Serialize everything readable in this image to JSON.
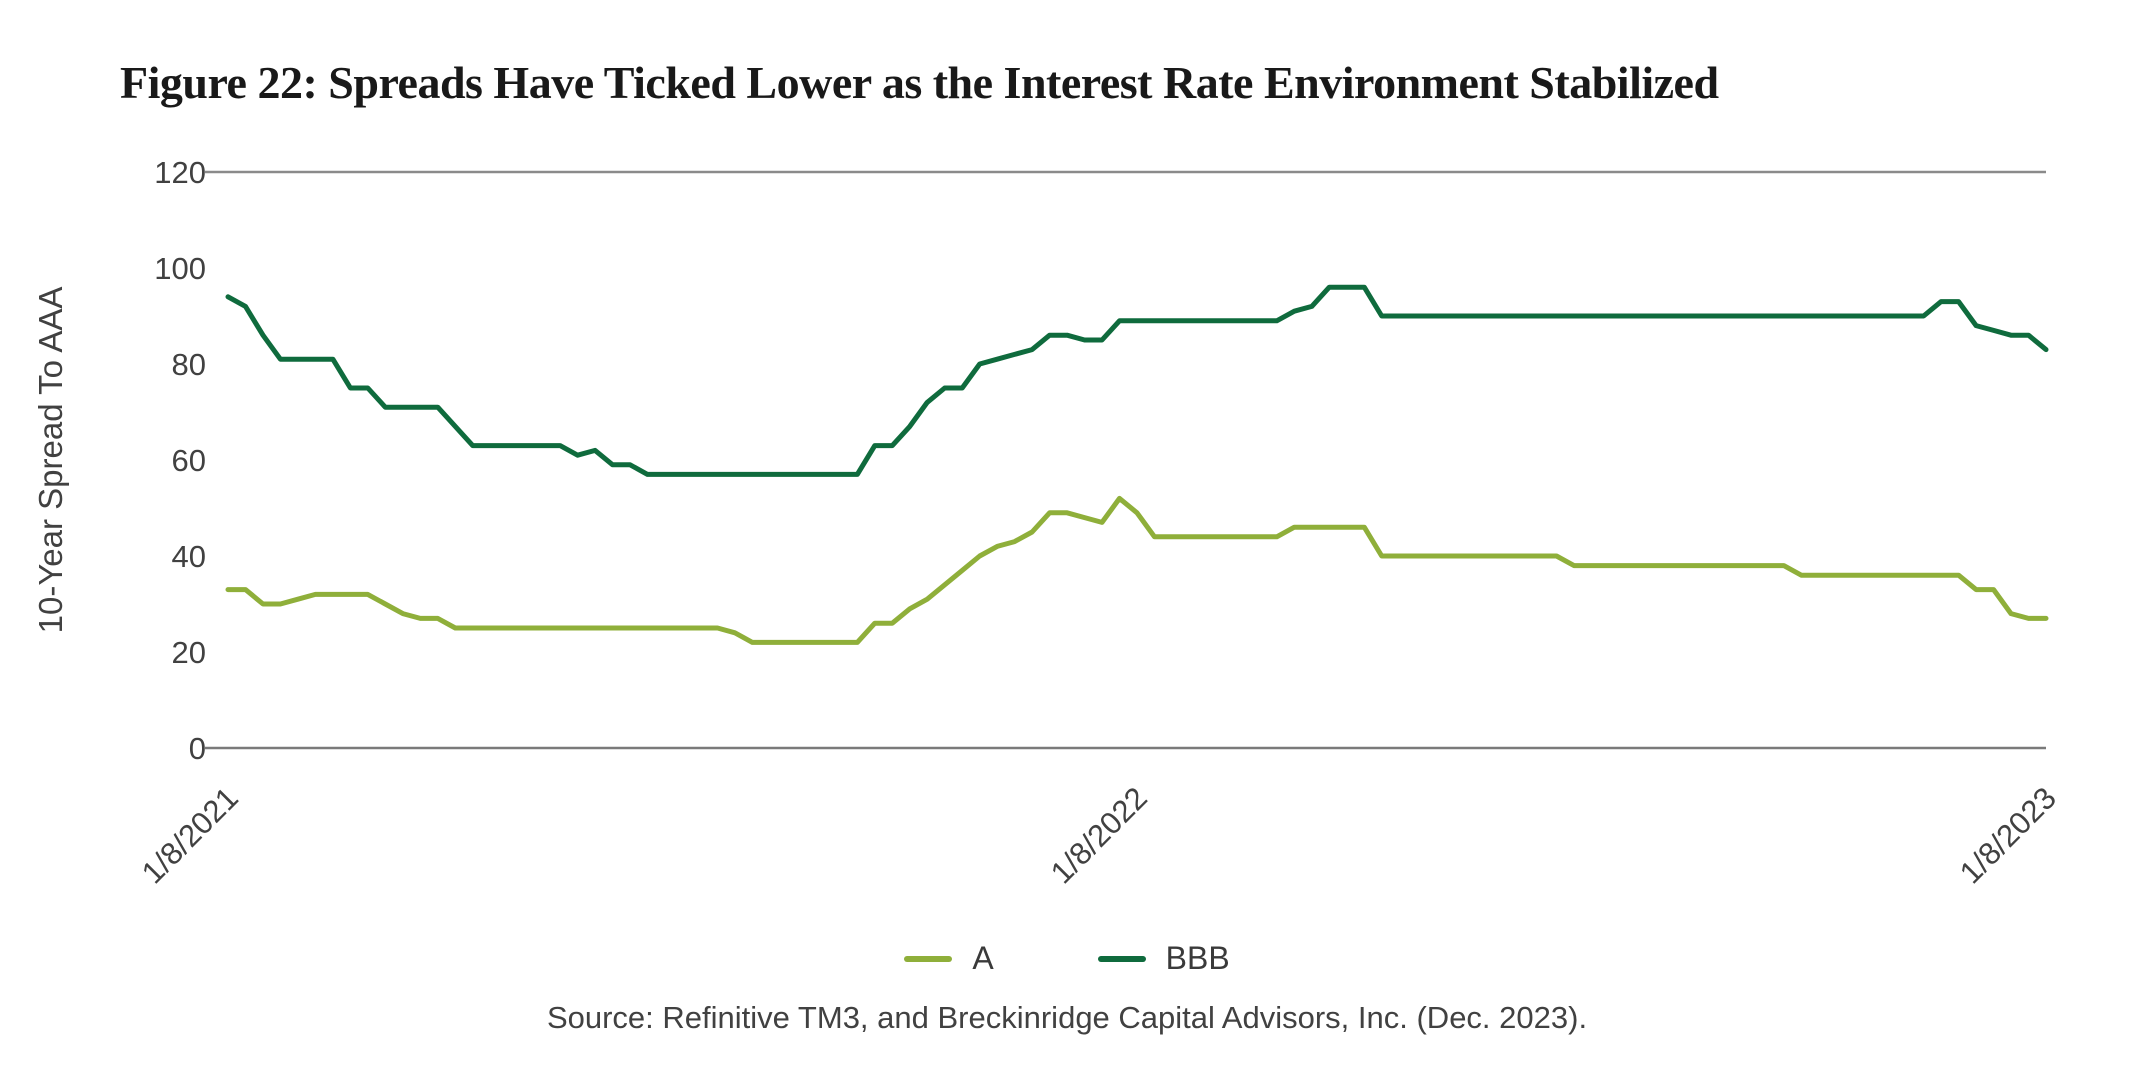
{
  "figure": {
    "title": "Figure 22: Spreads Have Ticked Lower as the Interest Rate Environment Stabilized",
    "source": "Source: Refinitive TM3, and Breckinridge Capital Advisors, Inc. (Dec. 2023)."
  },
  "chart_data": {
    "type": "line",
    "title": "Figure 22: Spreads Have Ticked Lower as the Interest Rate Environment Stabilized",
    "xlabel": "",
    "ylabel": "10-Year Spread To AAA",
    "ylim": [
      0,
      120
    ],
    "yticks": [
      0,
      20,
      40,
      60,
      80,
      100,
      120
    ],
    "x_unit": "weekly observations",
    "x_range": [
      "1/8/2021",
      "1/8/2023"
    ],
    "xtick_labels": [
      "1/8/2021",
      "1/8/2022",
      "1/8/2023"
    ],
    "xtick_week_positions": [
      0,
      52,
      104
    ],
    "grid": "top boundary line at y=120 and bottom axis line at y=0 only",
    "legend_position": "bottom-center",
    "colors": {
      "series_a": "#8FAF3A",
      "series_bbb": "#0F6B3D",
      "axis_line": "#7a7a7a",
      "top_gridline": "#8a8a8a",
      "text": "#414141",
      "title_text": "#191919"
    },
    "series": [
      {
        "name": "A",
        "color": "#8FAF3A",
        "values": [
          33,
          33,
          30,
          30,
          31,
          32,
          32,
          32,
          32,
          30,
          28,
          27,
          27,
          25,
          25,
          25,
          25,
          25,
          25,
          25,
          25,
          25,
          25,
          25,
          25,
          25,
          25,
          25,
          25,
          24,
          22,
          22,
          22,
          22,
          22,
          22,
          22,
          26,
          26,
          29,
          31,
          34,
          37,
          40,
          42,
          43,
          45,
          49,
          49,
          48,
          47,
          52,
          49,
          44,
          44,
          44,
          44,
          44,
          44,
          44,
          44,
          46,
          46,
          46,
          46,
          46,
          40,
          40,
          40,
          40,
          40,
          40,
          40,
          40,
          40,
          40,
          40,
          38,
          38,
          38,
          38,
          38,
          38,
          38,
          38,
          38,
          38,
          38,
          38,
          38,
          36,
          36,
          36,
          36,
          36,
          36,
          36,
          36,
          36,
          36,
          33,
          33,
          28,
          27,
          27
        ]
      },
      {
        "name": "BBB",
        "color": "#0F6B3D",
        "values": [
          94,
          92,
          86,
          81,
          81,
          81,
          81,
          75,
          75,
          71,
          71,
          71,
          71,
          67,
          63,
          63,
          63,
          63,
          63,
          63,
          61,
          62,
          59,
          59,
          57,
          57,
          57,
          57,
          57,
          57,
          57,
          57,
          57,
          57,
          57,
          57,
          57,
          63,
          63,
          67,
          72,
          75,
          75,
          80,
          81,
          82,
          83,
          86,
          86,
          85,
          85,
          89,
          89,
          89,
          89,
          89,
          89,
          89,
          89,
          89,
          89,
          91,
          92,
          96,
          96,
          96,
          90,
          90,
          90,
          90,
          90,
          90,
          90,
          90,
          90,
          90,
          90,
          90,
          90,
          90,
          90,
          90,
          90,
          90,
          90,
          90,
          90,
          90,
          90,
          90,
          90,
          90,
          90,
          90,
          90,
          90,
          90,
          90,
          93,
          93,
          88,
          87,
          86,
          86,
          83
        ]
      }
    ]
  }
}
